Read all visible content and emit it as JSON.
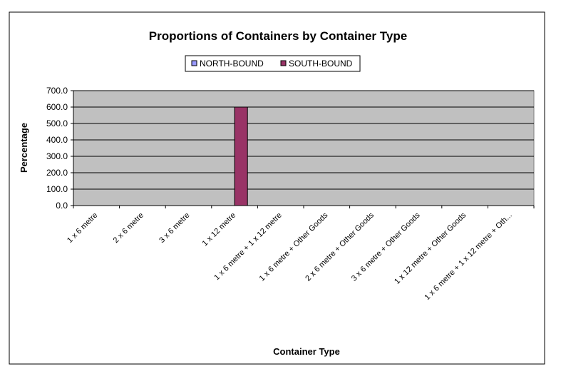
{
  "chart_data": {
    "type": "bar",
    "title": "Proportions of Containers by Container Type",
    "xlabel": "Container Type",
    "ylabel": "Percentage",
    "ylim": [
      0,
      700
    ],
    "yticks": [
      "0.0",
      "100.0",
      "200.0",
      "300.0",
      "400.0",
      "500.0",
      "600.0",
      "700.0"
    ],
    "grid": true,
    "legend_position": "top",
    "categories": [
      "1 x 6 metre",
      "2 x 6 metre",
      "3 x 6 metre",
      "1 x 12 metre",
      "1 x 6 metre + 1 x 12 metre",
      "1 x 6 metre + Other Goods",
      "2 x 6 metre + Other Goods",
      "3 x 6 metre + Other Goods",
      "1 x 12 metre + Other Goods",
      "1 x 6 metre + 1 x 12 metre + Oth..."
    ],
    "series": [
      {
        "name": "NORTH-BOUND",
        "color": "#9999ff",
        "values": [
          0,
          0,
          0,
          0,
          0,
          0,
          0,
          0,
          0,
          0
        ]
      },
      {
        "name": "SOUTH-BOUND",
        "color": "#993366",
        "values": [
          0,
          0,
          0,
          600,
          0,
          0,
          0,
          0,
          0,
          0
        ]
      }
    ],
    "plot_background": "#c0c0c0"
  }
}
